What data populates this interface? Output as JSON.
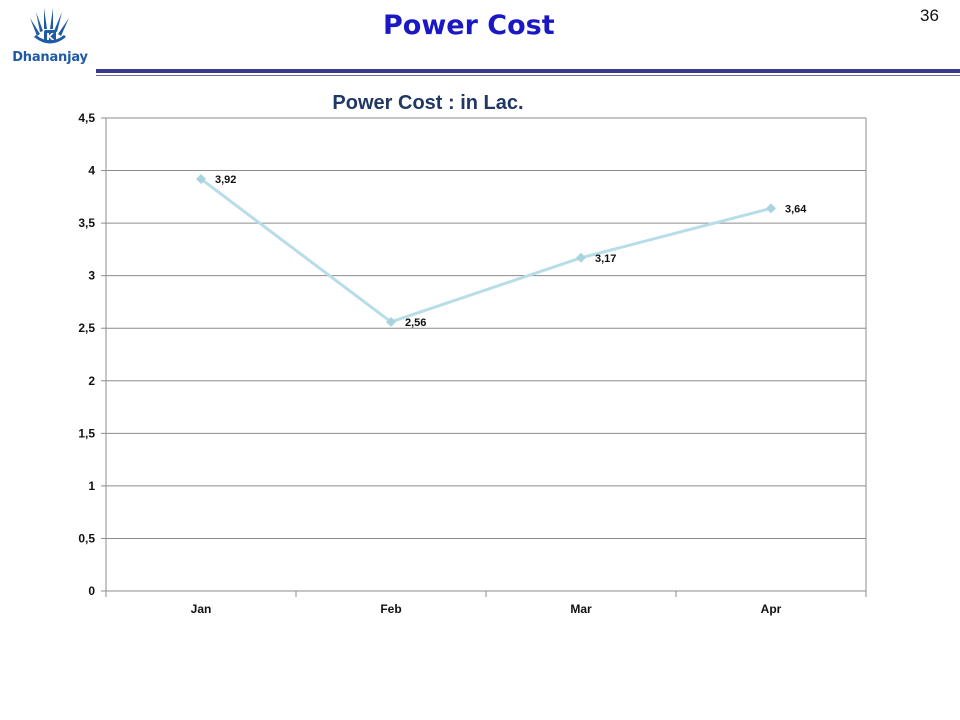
{
  "header": {
    "logo_text": "Dhananjay",
    "title": "Power Cost",
    "page_number": "36"
  },
  "colors": {
    "title_color": "#1a18c4",
    "rule_color": "#3a3a8c",
    "logo_color": "#1f5aa6",
    "series_color": "#b7dde8",
    "marker_color": "#a9d3e0"
  },
  "chart_data": {
    "type": "line",
    "title": "Power Cost : in Lac.",
    "categories": [
      "Jan",
      "Feb",
      "Mar",
      "Apr"
    ],
    "series": [
      {
        "values": [
          3.92,
          2.56,
          3.17,
          3.64
        ],
        "value_labels": [
          "3,92",
          "2,56",
          "3,17",
          "3,64"
        ]
      }
    ],
    "ylim": [
      0,
      4.5
    ],
    "yticks": [
      0,
      0.5,
      1,
      1.5,
      2,
      2.5,
      3,
      3.5,
      4,
      4.5
    ],
    "ytick_labels": [
      "0",
      "0,5",
      "1",
      "1,5",
      "2",
      "2,5",
      "3",
      "3,5",
      "4",
      "4,5"
    ],
    "grid": true,
    "legend": "none",
    "marker": "diamond"
  }
}
